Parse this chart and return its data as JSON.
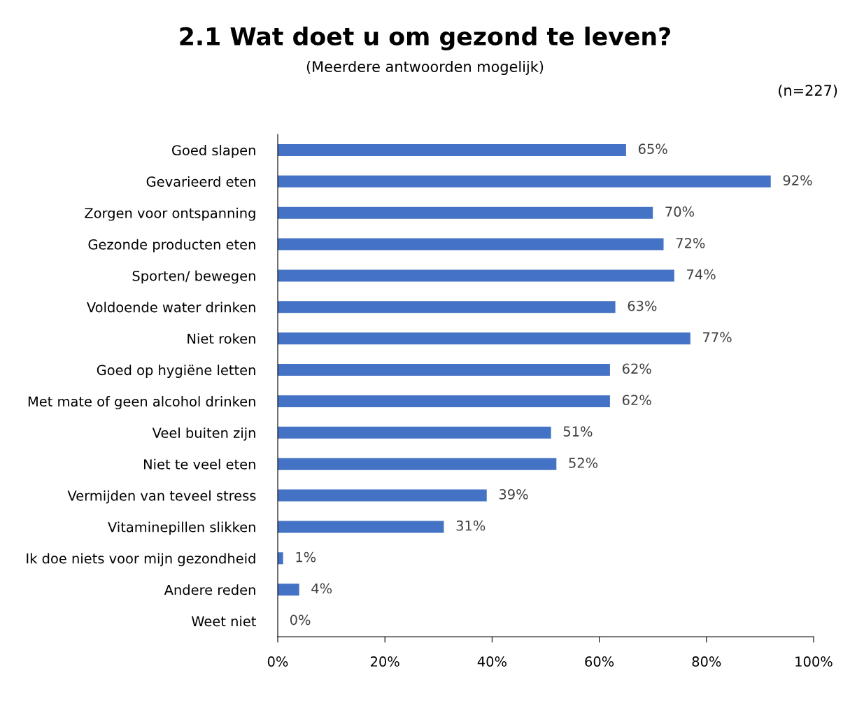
{
  "chart_data": {
    "type": "bar",
    "orientation": "horizontal",
    "title": "2.1 Wat doet u om gezond te leven?",
    "subtitle": "(Meerdere antwoorden mogelijk)",
    "annotations": [
      "(n=227)"
    ],
    "categories": [
      "Goed slapen",
      "Gevarieerd eten",
      "Zorgen voor ontspanning",
      "Gezonde producten eten",
      "Sporten/ bewegen",
      "Voldoende water drinken",
      "Niet roken",
      "Goed op hygiëne letten",
      "Met mate of geen alcohol drinken",
      "Veel buiten zijn",
      "Niet te veel eten",
      "Vermijden van teveel stress",
      "Vitaminepillen slikken",
      "Ik doe niets voor mijn gezondheid",
      "Andere reden",
      "Weet niet"
    ],
    "values": [
      65,
      92,
      70,
      72,
      74,
      63,
      77,
      62,
      62,
      51,
      52,
      39,
      31,
      1,
      4,
      0
    ],
    "value_labels": [
      "65%",
      "92%",
      "70%",
      "72%",
      "74%",
      "63%",
      "77%",
      "62%",
      "62%",
      "51%",
      "52%",
      "39%",
      "31%",
      "1%",
      "4%",
      "0%"
    ],
    "color": "#4472c4",
    "xlim": [
      0,
      100
    ],
    "xticks": [
      {
        "value": 0,
        "label": "0%"
      },
      {
        "value": 20,
        "label": "20%"
      },
      {
        "value": 40,
        "label": "40%"
      },
      {
        "value": 60,
        "label": "60%"
      },
      {
        "value": 80,
        "label": "80%"
      },
      {
        "value": 100,
        "label": "100%"
      }
    ],
    "grid": false,
    "legend": false
  }
}
